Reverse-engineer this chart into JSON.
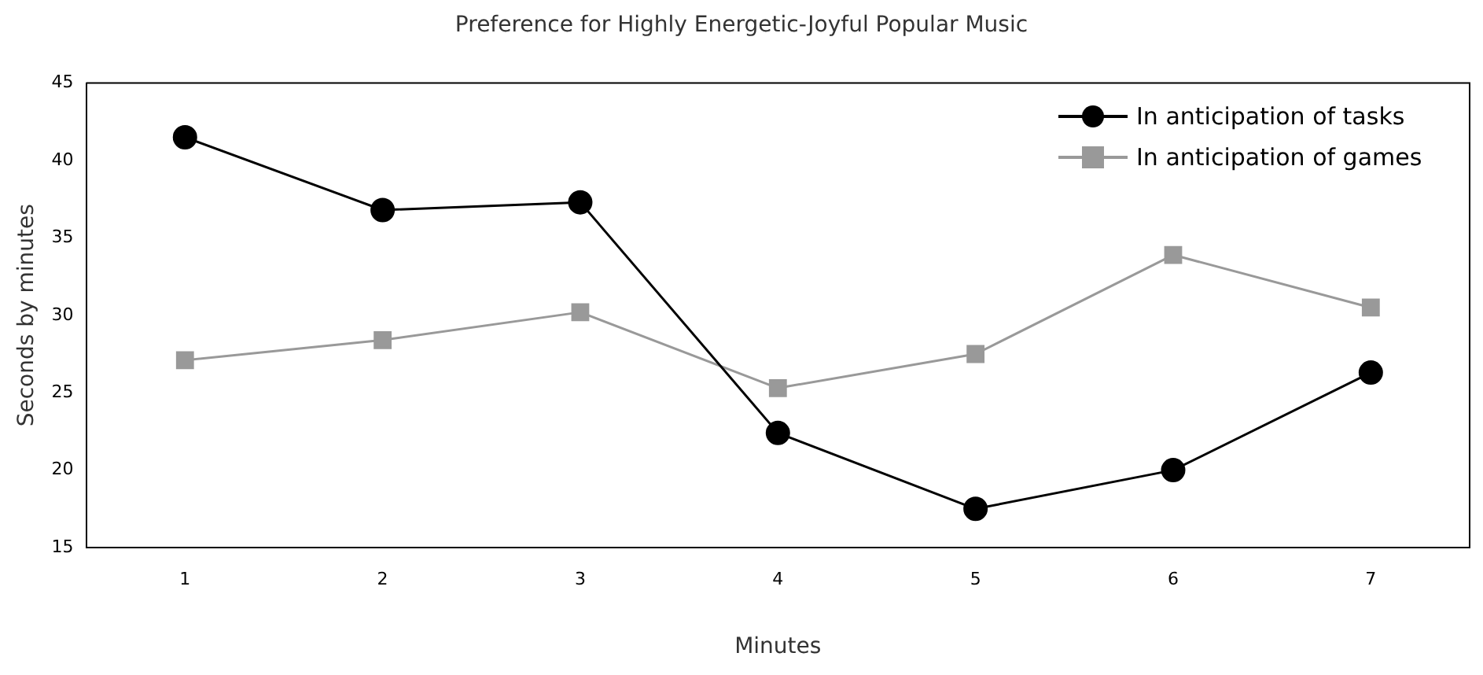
{
  "chart_data": {
    "type": "line",
    "title": "Preference for Highly Energetic-Joyful Popular Music",
    "xlabel": "Minutes",
    "ylabel": "Seconds by minutes",
    "categories": [
      "1",
      "2",
      "3",
      "4",
      "5",
      "6",
      "7"
    ],
    "series": [
      {
        "name": "In anticipation of tasks",
        "color": "#000000",
        "marker": "circle",
        "values": [
          41.5,
          36.8,
          37.3,
          22.4,
          17.5,
          20.0,
          26.3
        ]
      },
      {
        "name": "In anticipation of games",
        "color": "#999999",
        "marker": "square",
        "values": [
          27.1,
          28.4,
          30.2,
          25.3,
          27.5,
          33.9,
          30.5
        ]
      }
    ],
    "ylim": [
      15,
      45
    ],
    "yticks": [
      15,
      20,
      25,
      30,
      35,
      40,
      45
    ],
    "grid": false,
    "legend": "top right",
    "line_style": "solid"
  }
}
